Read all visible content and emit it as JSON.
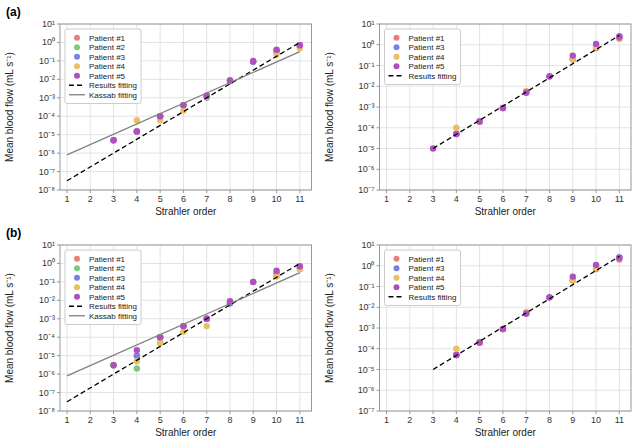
{
  "chart_data": [
    {
      "type": "scatter",
      "annotation": "(a)",
      "xlabel": "Strahler order",
      "ylabel": "Mean blood flow (mL s⁻¹)",
      "x": [
        3,
        4,
        5,
        6,
        7,
        8,
        9,
        10,
        11
      ],
      "series": [
        {
          "name": "Patient #1",
          "color": "#e8807a",
          "values": [
            5e-06,
            1.5e-05,
            0.0001,
            0.0004,
            0.0013,
            0.008,
            0.09,
            0.3,
            0.6
          ]
        },
        {
          "name": "Patient #2",
          "color": "#80c87a",
          "values": [
            null,
            null,
            null,
            null,
            0.001,
            null,
            null,
            null,
            null
          ]
        },
        {
          "name": "Patient #3",
          "color": "#7a80e8",
          "values": [
            5e-06,
            1.5e-05,
            0.0001,
            0.0004,
            0.0013,
            0.008,
            0.09,
            0.35,
            0.7
          ]
        },
        {
          "name": "Patient #4",
          "color": "#e8c060",
          "values": [
            null,
            6e-05,
            6e-05,
            0.0002,
            0.0013,
            null,
            null,
            0.22,
            0.5
          ]
        },
        {
          "name": "Patient #5",
          "color": "#b050c0",
          "values": [
            5e-06,
            1.5e-05,
            0.0001,
            0.0004,
            0.0013,
            0.009,
            0.1,
            0.4,
            0.7
          ]
        },
        {
          "name": "Results fitting",
          "type": "line",
          "line_style": "dashed",
          "color": "#000000",
          "x": [
            1,
            11
          ],
          "values": [
            3.162277660168379e-08,
            1
          ]
        },
        {
          "name": "Kassab fitting",
          "type": "line",
          "line_style": "solid",
          "color": "#808080",
          "x": [
            1,
            11
          ],
          "values": [
            7.943282347242822e-07,
            0.31622776601683794
          ]
        }
      ],
      "xlim": [
        0.7,
        11.5
      ],
      "xticks": [
        1,
        2,
        3,
        4,
        5,
        6,
        7,
        8,
        9,
        10,
        11
      ],
      "ylim": [
        1e-08,
        10
      ],
      "yticks": [
        {
          "value": 1e-08,
          "label": "10⁻⁸"
        },
        {
          "value": 1e-07,
          "label": "10⁻⁷"
        },
        {
          "value": 1e-06,
          "label": "10⁻⁶"
        },
        {
          "value": 1e-05,
          "label": "10⁻⁵"
        },
        {
          "value": 0.0001,
          "label": "10⁻⁴"
        },
        {
          "value": 0.001,
          "label": "10⁻³"
        },
        {
          "value": 0.01,
          "label": "10⁻²"
        },
        {
          "value": 0.1,
          "label": "10⁻¹"
        },
        {
          "value": 1,
          "label": "10⁰"
        },
        {
          "value": 10,
          "label": "10¹"
        }
      ],
      "log": "y",
      "grid": true,
      "legend": "upper left",
      "marker": "circle"
    },
    {
      "type": "scatter",
      "xlabel": "Strahler order",
      "ylabel": "Mean blood flow (mL s⁻¹)",
      "x": [
        3,
        4,
        5,
        6,
        7,
        8,
        9,
        10,
        11
      ],
      "series": [
        {
          "name": "Patient #1",
          "color": "#e8807a",
          "values": [
            null,
            5e-05,
            0.0002,
            0.0009,
            0.005,
            0.03,
            0.2,
            0.7,
            2.0
          ]
        },
        {
          "name": "Patient #3",
          "color": "#7a80e8",
          "values": [
            null,
            5e-05,
            0.0002,
            0.0009,
            0.005,
            0.03,
            0.2,
            1.0,
            2.5
          ]
        },
        {
          "name": "Patient #4",
          "color": "#e8c060",
          "values": [
            null,
            0.0001,
            0.0002,
            0.0009,
            0.006,
            null,
            0.2,
            0.8,
            null
          ]
        },
        {
          "name": "Patient #5",
          "color": "#b050c0",
          "values": [
            1e-05,
            5e-05,
            0.0002,
            0.0009,
            0.005,
            0.03,
            0.3,
            1.1,
            2.5
          ]
        },
        {
          "name": "Results fitting",
          "type": "line",
          "line_style": "dashed",
          "color": "#000000",
          "x": [
            3,
            11
          ],
          "values": [
            1e-05,
            2.8183829312644537
          ]
        }
      ],
      "xlim": [
        0.7,
        11.5
      ],
      "xticks": [
        1,
        2,
        3,
        4,
        5,
        6,
        7,
        8,
        9,
        10,
        11
      ],
      "ylim": [
        1e-07,
        10
      ],
      "yticks": [
        {
          "value": 1e-07,
          "label": "10⁻⁷"
        },
        {
          "value": 1e-06,
          "label": "10⁻⁶"
        },
        {
          "value": 1e-05,
          "label": "10⁻⁵"
        },
        {
          "value": 0.0001,
          "label": "10⁻⁴"
        },
        {
          "value": 0.001,
          "label": "10⁻³"
        },
        {
          "value": 0.01,
          "label": "10⁻²"
        },
        {
          "value": 0.1,
          "label": "10⁻¹"
        },
        {
          "value": 1,
          "label": "10⁰"
        },
        {
          "value": 10,
          "label": "10¹"
        }
      ],
      "log": "y",
      "grid": true,
      "legend": "upper left",
      "marker": "circle"
    },
    {
      "type": "scatter",
      "annotation": "(b)",
      "xlabel": "Strahler order",
      "ylabel": "Mean blood flow (mL s⁻¹)",
      "x": [
        3,
        4,
        5,
        6,
        7,
        8,
        9,
        10,
        11
      ],
      "series": [
        {
          "name": "Patient #1",
          "color": "#e8807a",
          "values": [
            3e-06,
            1e-05,
            0.0001,
            0.0004,
            0.001,
            0.007,
            null,
            0.2,
            0.5
          ]
        },
        {
          "name": "Patient #2",
          "color": "#80c87a",
          "values": [
            3e-06,
            2e-06,
            5e-05,
            null,
            0.001,
            null,
            null,
            null,
            null
          ]
        },
        {
          "name": "Patient #3",
          "color": "#7a80e8",
          "values": [
            null,
            1e-05,
            0.0001,
            0.0004,
            0.001,
            0.007,
            0.1,
            0.3,
            0.6
          ]
        },
        {
          "name": "Patient #4",
          "color": "#e8c060",
          "values": [
            null,
            5e-06,
            5e-05,
            0.0002,
            0.0004,
            null,
            null,
            0.2,
            0.5
          ]
        },
        {
          "name": "Patient #5",
          "color": "#b050c0",
          "values": [
            3e-06,
            2e-05,
            0.0001,
            0.0004,
            0.001,
            0.009,
            0.1,
            0.4,
            0.7
          ]
        },
        {
          "name": "Results fitting",
          "type": "line",
          "line_style": "dashed",
          "color": "#000000",
          "x": [
            1,
            11
          ],
          "values": [
            3.162277660168379e-08,
            1
          ]
        },
        {
          "name": "Kassab fitting",
          "type": "line",
          "line_style": "solid",
          "color": "#808080",
          "x": [
            1,
            11
          ],
          "values": [
            7.943282347242822e-07,
            0.31622776601683794
          ]
        }
      ],
      "xlim": [
        0.7,
        11.5
      ],
      "xticks": [
        1,
        2,
        3,
        4,
        5,
        6,
        7,
        8,
        9,
        10,
        11
      ],
      "ylim": [
        1e-08,
        10
      ],
      "yticks": [
        {
          "value": 1e-08,
          "label": "10⁻⁸"
        },
        {
          "value": 1e-07,
          "label": "10⁻⁷"
        },
        {
          "value": 1e-06,
          "label": "10⁻⁶"
        },
        {
          "value": 1e-05,
          "label": "10⁻⁵"
        },
        {
          "value": 0.0001,
          "label": "10⁻⁴"
        },
        {
          "value": 0.001,
          "label": "10⁻³"
        },
        {
          "value": 0.01,
          "label": "10⁻²"
        },
        {
          "value": 0.1,
          "label": "10⁻¹"
        },
        {
          "value": 1,
          "label": "10⁰"
        },
        {
          "value": 10,
          "label": "10¹"
        }
      ],
      "log": "y",
      "grid": true,
      "legend": "upper left",
      "marker": "circle"
    },
    {
      "type": "scatter",
      "xlabel": "Strahler order",
      "ylabel": "Mean blood flow (mL s⁻¹)",
      "x": [
        3,
        4,
        5,
        6,
        7,
        8,
        9,
        10,
        11
      ],
      "series": [
        {
          "name": "Patient #1",
          "color": "#e8807a",
          "values": [
            null,
            5e-05,
            0.0002,
            0.0009,
            0.005,
            0.03,
            0.2,
            0.7,
            2.0
          ]
        },
        {
          "name": "Patient #3",
          "color": "#7a80e8",
          "values": [
            null,
            5e-05,
            0.0002,
            0.0009,
            0.005,
            0.03,
            0.2,
            1.0,
            2.5
          ]
        },
        {
          "name": "Patient #4",
          "color": "#e8c060",
          "values": [
            null,
            0.0001,
            0.0002,
            0.0009,
            0.006,
            null,
            0.2,
            0.8,
            null
          ]
        },
        {
          "name": "Patient #5",
          "color": "#b050c0",
          "values": [
            null,
            5e-05,
            0.0002,
            0.0009,
            0.005,
            0.03,
            0.3,
            1.1,
            2.5
          ]
        },
        {
          "name": "Results fitting",
          "type": "line",
          "line_style": "dashed",
          "color": "#000000",
          "x": [
            3,
            11
          ],
          "values": [
            1e-05,
            2.8183829312644537
          ]
        }
      ],
      "xlim": [
        0.7,
        11.5
      ],
      "xticks": [
        1,
        2,
        3,
        4,
        5,
        6,
        7,
        8,
        9,
        10,
        11
      ],
      "ylim": [
        1e-07,
        10
      ],
      "yticks": [
        {
          "value": 1e-07,
          "label": "10⁻⁷"
        },
        {
          "value": 1e-06,
          "label": "10⁻⁶"
        },
        {
          "value": 1e-05,
          "label": "10⁻⁵"
        },
        {
          "value": 0.0001,
          "label": "10⁻⁴"
        },
        {
          "value": 0.001,
          "label": "10⁻³"
        },
        {
          "value": 0.01,
          "label": "10⁻²"
        },
        {
          "value": 0.1,
          "label": "10⁻¹"
        },
        {
          "value": 1,
          "label": "10⁰"
        },
        {
          "value": 10,
          "label": "10¹"
        }
      ],
      "log": "y",
      "grid": true,
      "legend": "upper left",
      "marker": "circle"
    }
  ]
}
